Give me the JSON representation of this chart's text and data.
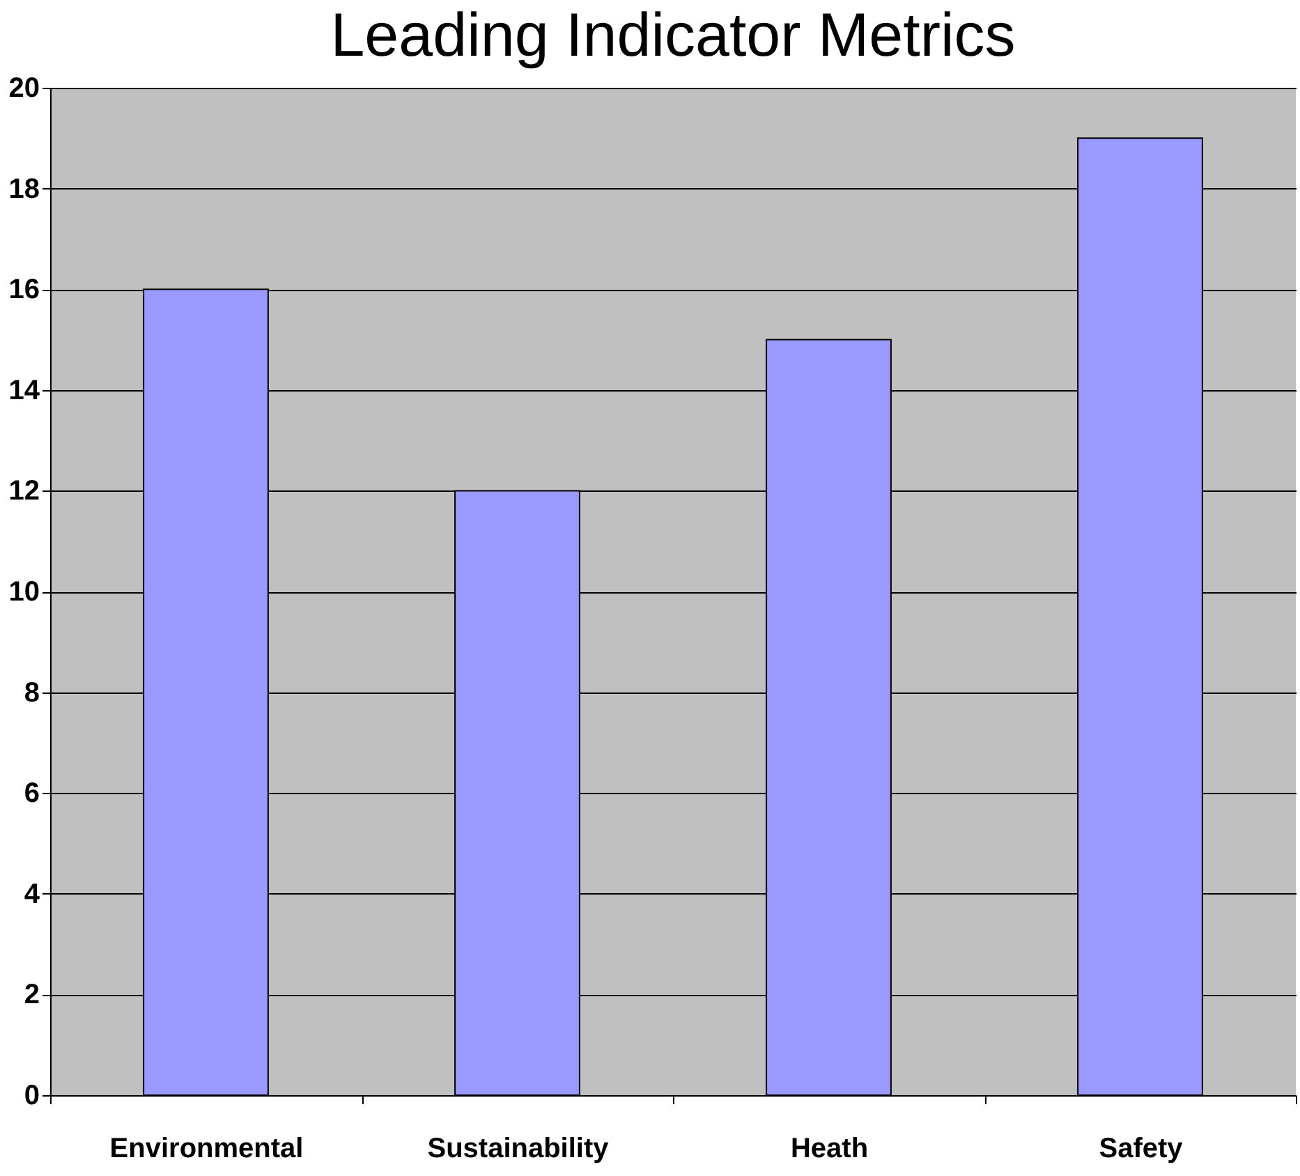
{
  "chart_data": {
    "type": "bar",
    "title": "Leading Indicator Metrics",
    "categories": [
      "Environmental",
      "Sustainability",
      "Heath",
      "Safety"
    ],
    "values": [
      16,
      12,
      15,
      19
    ],
    "color": "#9999ff",
    "ylim": [
      0,
      20
    ],
    "yticks": [
      0,
      2,
      4,
      6,
      8,
      10,
      12,
      14,
      16,
      18,
      20
    ],
    "grid": "y"
  }
}
